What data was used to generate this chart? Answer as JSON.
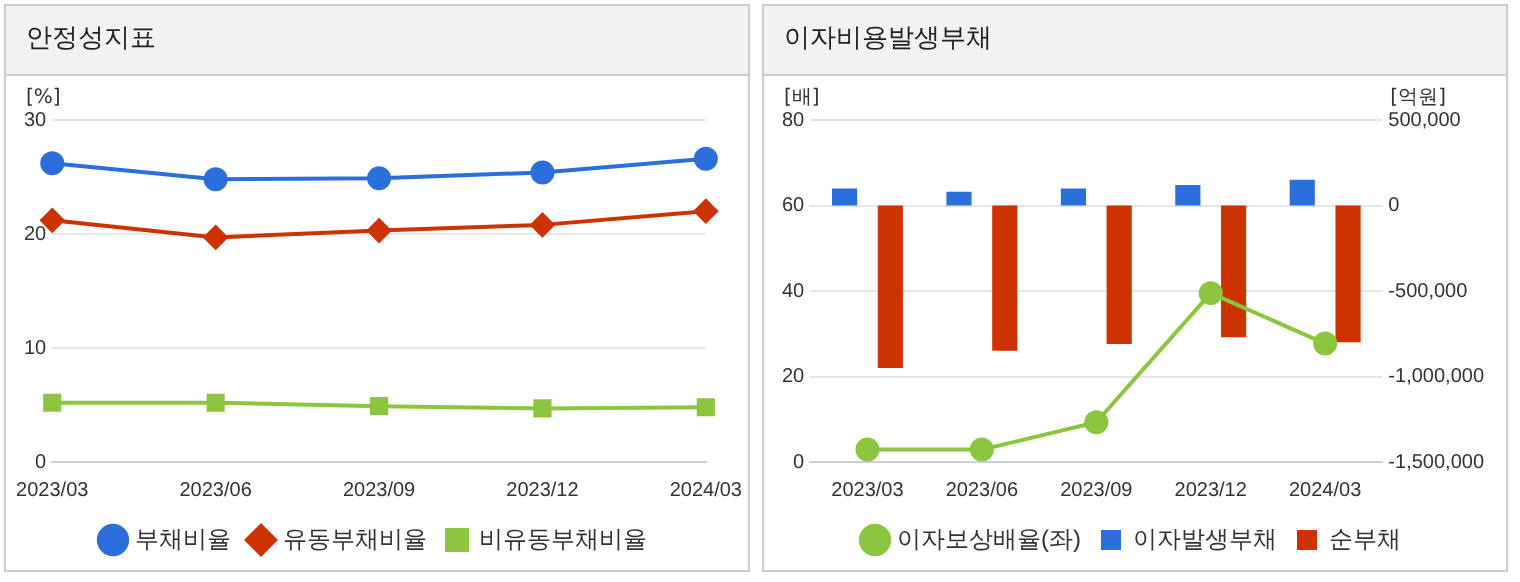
{
  "chart_data": [
    {
      "type": "line",
      "title": "안정성지표",
      "ylabel": "[%]",
      "categories": [
        "2023/03",
        "2023/06",
        "2023/09",
        "2023/12",
        "2024/03"
      ],
      "series": [
        {
          "name": "부채비율",
          "color": "#2a6fdb",
          "marker": "circle",
          "values": [
            26.2,
            24.8,
            24.9,
            25.4,
            26.6
          ]
        },
        {
          "name": "유동부채비율",
          "color": "#cc3300",
          "marker": "diamond",
          "values": [
            21.2,
            19.7,
            20.3,
            20.8,
            22.0
          ]
        },
        {
          "name": "비유동부채비율",
          "color": "#8cc63f",
          "marker": "square",
          "values": [
            5.2,
            5.2,
            4.9,
            4.7,
            4.8
          ]
        }
      ],
      "ylim": [
        0,
        30
      ],
      "yticks": [
        0,
        10,
        20,
        30
      ],
      "grid": "y",
      "legend": "bottom"
    },
    {
      "type": "bar",
      "title": "이자비용발생부채",
      "ylabel": "[배]",
      "y2label": "[억원]",
      "categories": [
        "2023/03",
        "2023/06",
        "2023/09",
        "2023/12",
        "2024/03"
      ],
      "series": [
        {
          "name": "이자발생부채",
          "color": "#2a6fdb",
          "axis": "y2",
          "values": [
            100000,
            80000,
            100000,
            120000,
            150000
          ]
        },
        {
          "name": "순부채",
          "color": "#cc3300",
          "axis": "y2",
          "values": [
            -950000,
            -850000,
            -810000,
            -770000,
            -800000
          ]
        },
        {
          "name": "이자보상배율(좌)",
          "type": "line",
          "color": "#8cc63f",
          "marker": "circle",
          "values": [
            2.9,
            2.9,
            9.3,
            39.5,
            27.7
          ]
        }
      ],
      "ylim": [
        0,
        80
      ],
      "yticks": [
        0,
        20,
        40,
        60,
        80
      ],
      "y2lim": [
        -1500000,
        500000
      ],
      "y2ticks": [
        {
          "value": -1500000,
          "label": "-1,500,000"
        },
        {
          "value": -1000000,
          "label": "-1,000,000"
        },
        {
          "value": -500000,
          "label": "-500,000"
        },
        {
          "value": 0,
          "label": "0"
        },
        {
          "value": 500000,
          "label": "500,000"
        }
      ],
      "grid": "y",
      "legend": "bottom"
    }
  ]
}
